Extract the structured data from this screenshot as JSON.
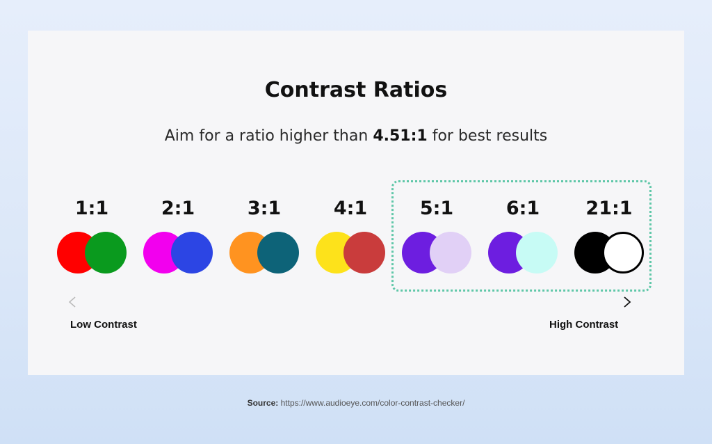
{
  "title": "Contrast Ratios",
  "subtitle": {
    "prefix": "Aim for a ratio higher than",
    "value": "4.51:1",
    "suffix": "for best results"
  },
  "ratios": [
    {
      "label": "1:1",
      "back_color": "#ff0000",
      "front_color": "#0a9a1e"
    },
    {
      "label": "2:1",
      "back_color": "#f200ee",
      "front_color": "#2c45e4"
    },
    {
      "label": "3:1",
      "back_color": "#ff9320",
      "front_color": "#0d6378"
    },
    {
      "label": "4:1",
      "back_color": "#fde21b",
      "front_color": "#c93c3c"
    },
    {
      "label": "5:1",
      "back_color": "#6d1ee0",
      "front_color": "#e1d0f6"
    },
    {
      "label": "6:1",
      "back_color": "#6d1ee0",
      "front_color": "#c7fbf5"
    },
    {
      "label": "21:1",
      "back_color": "#000000",
      "front_color": "#ffffff"
    }
  ],
  "highlight_border_color": "#5fc7a8",
  "axis": {
    "low_label": "Low Contrast",
    "high_label": "High Contrast"
  },
  "source": {
    "label": "Source:",
    "url": "https://www.audioeye.com/color-contrast-checker/"
  }
}
